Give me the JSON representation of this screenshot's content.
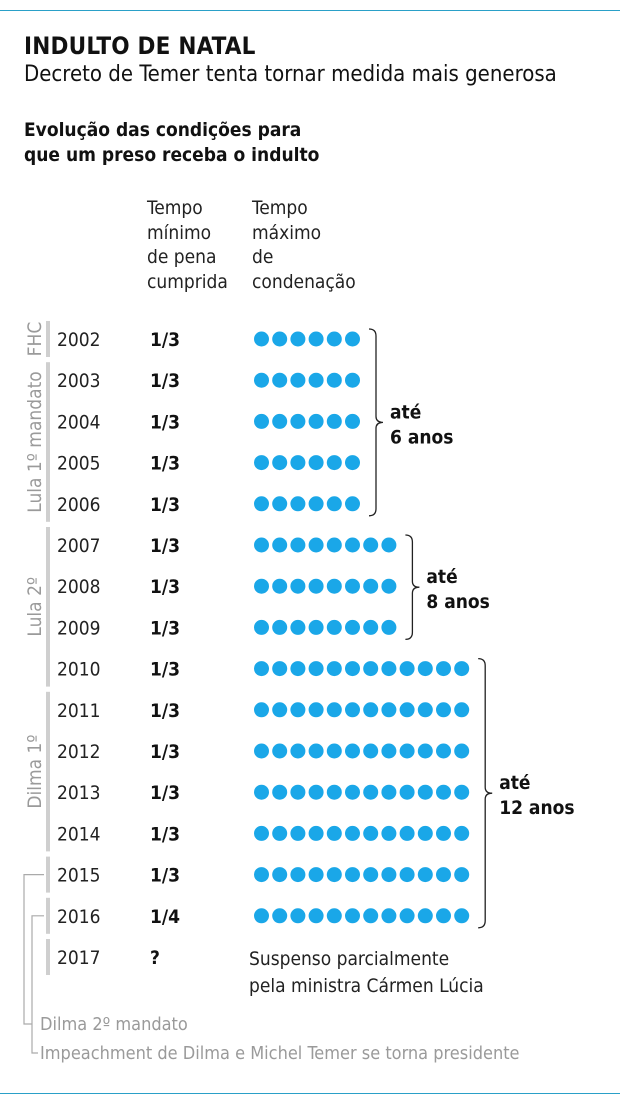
{
  "header": {
    "title": "INDULTO DE NATAL",
    "subtitle": "Decreto de Temer tenta tornar medida mais generosa",
    "lead_line1": "Evolução das condições para",
    "lead_line2": "que um preso receba o indulto"
  },
  "columns": {
    "min_lines": [
      "Tempo",
      "mínimo",
      "de pena",
      "cumprida"
    ],
    "max_lines": [
      "Tempo",
      "máximo",
      "de",
      "condenação"
    ]
  },
  "colors": {
    "dot": "#1aa7e8",
    "rule": "#2aa0c8",
    "muted": "#9a9a9a"
  },
  "chart_data": {
    "type": "table",
    "columns": [
      "Tempo mínimo de pena cumprida",
      "Tempo máximo de condenação"
    ],
    "rows": [
      {
        "year": "2002",
        "min": "1/3",
        "max_years": 6
      },
      {
        "year": "2003",
        "min": "1/3",
        "max_years": 6
      },
      {
        "year": "2004",
        "min": "1/3",
        "max_years": 6
      },
      {
        "year": "2005",
        "min": "1/3",
        "max_years": 6
      },
      {
        "year": "2006",
        "min": "1/3",
        "max_years": 6
      },
      {
        "year": "2007",
        "min": "1/3",
        "max_years": 8
      },
      {
        "year": "2008",
        "min": "1/3",
        "max_years": 8
      },
      {
        "year": "2009",
        "min": "1/3",
        "max_years": 8
      },
      {
        "year": "2010",
        "min": "1/3",
        "max_years": 12
      },
      {
        "year": "2011",
        "min": "1/3",
        "max_years": 12
      },
      {
        "year": "2012",
        "min": "1/3",
        "max_years": 12
      },
      {
        "year": "2013",
        "min": "1/3",
        "max_years": 12
      },
      {
        "year": "2014",
        "min": "1/3",
        "max_years": 12
      },
      {
        "year": "2015",
        "min": "1/3",
        "max_years": 12
      },
      {
        "year": "2016",
        "min": "1/4",
        "max_years": 12
      },
      {
        "year": "2017",
        "min": "?",
        "max_years": null
      }
    ],
    "note_2017": [
      "Suspenso parcialmente",
      "pela ministra Cármen Lúcia"
    ],
    "groups": [
      {
        "label": "FHC",
        "from": "2002",
        "to": "2002"
      },
      {
        "label": "Lula 1º mandato",
        "from": "2003",
        "to": "2006"
      },
      {
        "label": "Lula 2º",
        "from": "2007",
        "to": "2010"
      },
      {
        "label": "Dilma 1º",
        "from": "2011",
        "to": "2014"
      }
    ],
    "brackets": [
      {
        "line1": "até",
        "line2": "6 anos",
        "from": "2002",
        "to": "2006"
      },
      {
        "line1": "até",
        "line2": "8 anos",
        "from": "2007",
        "to": "2009"
      },
      {
        "line1": "até",
        "line2": "12 anos",
        "from": "2010",
        "to": "2016"
      }
    ],
    "footnotes": {
      "dilma2": "Dilma 2º mandato",
      "impeachment": "Impeachment de Dilma e Michel Temer se torna presidente"
    }
  }
}
